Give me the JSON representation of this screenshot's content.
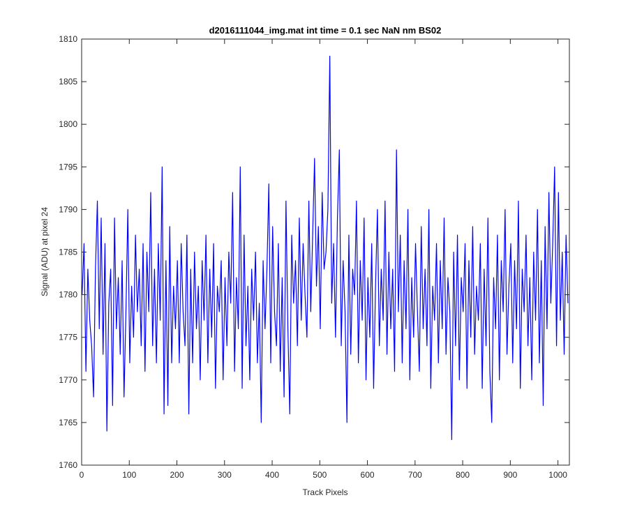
{
  "chart_data": {
    "type": "line",
    "title": "d2016111044_img.mat int time = 0.1 sec  NaN nm BS02",
    "xlabel": "Track Pixels",
    "ylabel": "Signal (ADU) at pixel 24",
    "color": "#0000ff",
    "xlim": [
      0,
      1024
    ],
    "ylim": [
      1760,
      1810
    ],
    "xticks": [
      0,
      100,
      200,
      300,
      400,
      500,
      600,
      700,
      800,
      900,
      1000
    ],
    "yticks": [
      1760,
      1765,
      1770,
      1775,
      1780,
      1785,
      1790,
      1795,
      1800,
      1805,
      1810
    ],
    "grid": false,
    "x": [
      1,
      5,
      9,
      13,
      17,
      21,
      25,
      29,
      33,
      37,
      41,
      45,
      49,
      53,
      57,
      61,
      65,
      69,
      73,
      77,
      81,
      85,
      89,
      93,
      97,
      101,
      105,
      109,
      113,
      117,
      121,
      125,
      129,
      133,
      137,
      141,
      145,
      149,
      153,
      157,
      161,
      165,
      169,
      173,
      177,
      181,
      185,
      189,
      193,
      197,
      201,
      205,
      209,
      213,
      217,
      221,
      225,
      229,
      233,
      237,
      241,
      245,
      249,
      253,
      257,
      261,
      265,
      269,
      273,
      277,
      281,
      285,
      289,
      293,
      297,
      301,
      305,
      309,
      313,
      317,
      321,
      325,
      329,
      333,
      337,
      341,
      345,
      349,
      353,
      357,
      361,
      365,
      369,
      373,
      377,
      381,
      385,
      389,
      393,
      397,
      401,
      405,
      409,
      413,
      417,
      421,
      425,
      429,
      433,
      437,
      441,
      445,
      449,
      453,
      457,
      461,
      465,
      469,
      473,
      477,
      481,
      485,
      489,
      493,
      497,
      501,
      505,
      509,
      513,
      517,
      521,
      525,
      529,
      533,
      537,
      541,
      545,
      549,
      553,
      557,
      561,
      565,
      569,
      573,
      577,
      581,
      585,
      589,
      593,
      597,
      601,
      605,
      609,
      613,
      617,
      621,
      625,
      629,
      633,
      637,
      641,
      645,
      649,
      653,
      657,
      661,
      665,
      669,
      673,
      677,
      681,
      685,
      689,
      693,
      697,
      701,
      705,
      709,
      713,
      717,
      721,
      725,
      729,
      733,
      737,
      741,
      745,
      749,
      753,
      757,
      761,
      765,
      769,
      773,
      777,
      781,
      785,
      789,
      793,
      797,
      801,
      805,
      809,
      813,
      817,
      821,
      825,
      829,
      833,
      837,
      841,
      845,
      849,
      853,
      857,
      861,
      865,
      869,
      873,
      877,
      881,
      885,
      889,
      893,
      897,
      901,
      905,
      909,
      913,
      917,
      921,
      925,
      929,
      933,
      937,
      941,
      945,
      949,
      953,
      957,
      961,
      965,
      969,
      973,
      977,
      981,
      985,
      989,
      993,
      997,
      1001,
      1005,
      1009,
      1013,
      1017,
      1021
    ],
    "values": [
      1780,
      1786,
      1771,
      1783,
      1777,
      1774,
      1768,
      1783,
      1791,
      1776,
      1789,
      1773,
      1786,
      1764,
      1779,
      1783,
      1767,
      1789,
      1776,
      1782,
      1773,
      1784,
      1768,
      1778,
      1790,
      1772,
      1781,
      1775,
      1787,
      1778,
      1783,
      1774,
      1786,
      1771,
      1785,
      1778,
      1792,
      1774,
      1783,
      1772,
      1786,
      1777,
      1795,
      1766,
      1784,
      1767,
      1788,
      1772,
      1781,
      1776,
      1784,
      1772,
      1786,
      1778,
      1774,
      1787,
      1766,
      1783,
      1772,
      1785,
      1776,
      1781,
      1770,
      1784,
      1777,
      1787,
      1772,
      1783,
      1775,
      1786,
      1769,
      1781,
      1778,
      1784,
      1770,
      1782,
      1774,
      1785,
      1779,
      1792,
      1771,
      1782,
      1776,
      1795,
      1769,
      1787,
      1774,
      1781,
      1770,
      1783,
      1777,
      1785,
      1772,
      1779,
      1765,
      1784,
      1776,
      1783,
      1793,
      1772,
      1788,
      1778,
      1774,
      1786,
      1771,
      1782,
      1768,
      1791,
      1776,
      1766,
      1787,
      1779,
      1784,
      1774,
      1789,
      1777,
      1786,
      1780,
      1775,
      1791,
      1778,
      1787,
      1796,
      1781,
      1788,
      1776,
      1792,
      1783,
      1785,
      1790,
      1808,
      1779,
      1786,
      1775,
      1789,
      1797,
      1774,
      1784,
      1778,
      1765,
      1787,
      1773,
      1783,
      1780,
      1791,
      1772,
      1784,
      1777,
      1789,
      1770,
      1782,
      1775,
      1786,
      1769,
      1781,
      1790,
      1774,
      1783,
      1777,
      1791,
      1773,
      1785,
      1776,
      1783,
      1771,
      1797,
      1778,
      1787,
      1772,
      1784,
      1776,
      1790,
      1770,
      1782,
      1775,
      1786,
      1778,
      1771,
      1788,
      1776,
      1783,
      1774,
      1790,
      1769,
      1781,
      1777,
      1786,
      1772,
      1784,
      1776,
      1789,
      1773,
      1782,
      1778,
      1763,
      1785,
      1774,
      1787,
      1770,
      1782,
      1778,
      1786,
      1769,
      1784,
      1775,
      1788,
      1773,
      1781,
      1777,
      1786,
      1769,
      1783,
      1774,
      1789,
      1771,
      1765,
      1782,
      1776,
      1787,
      1770,
      1784,
      1778,
      1790,
      1773,
      1781,
      1786,
      1772,
      1784,
      1776,
      1791,
      1769,
      1783,
      1778,
      1787,
      1774,
      1782,
      1770,
      1785,
      1777,
      1790,
      1772,
      1784,
      1767,
      1788,
      1776,
      1792,
      1779,
      1786,
      1795,
      1774,
      1792,
      1777,
      1785,
      1773,
      1787,
      1779
    ]
  }
}
